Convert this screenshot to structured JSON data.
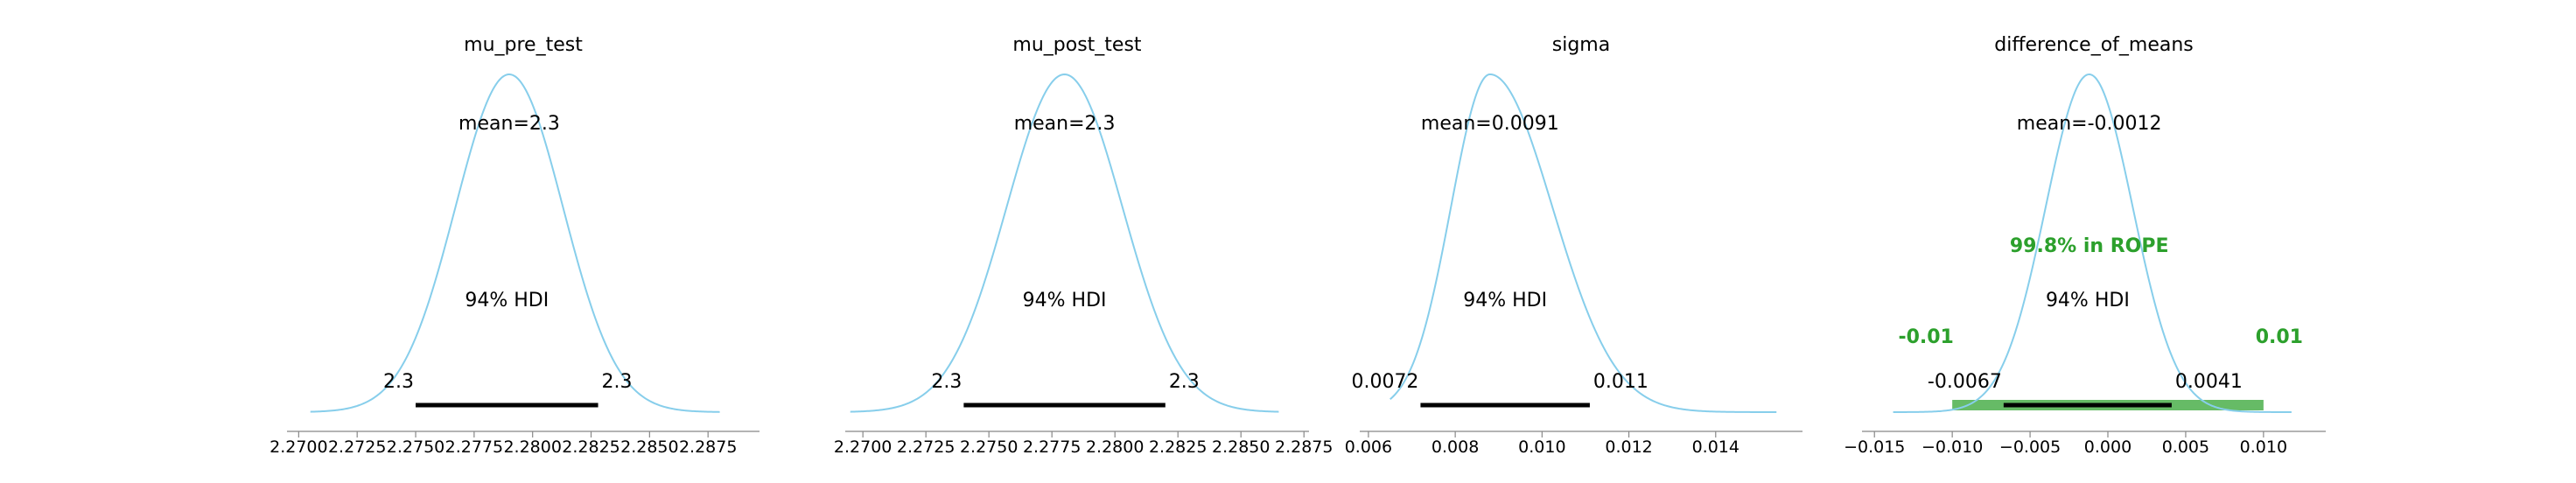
{
  "figure": {
    "colors": {
      "kde": "#87ceeb",
      "hdi": "#000000",
      "rope": "#2ca02c",
      "rope_fill": "#66bb66",
      "axis": "#888888",
      "text": "#000000"
    }
  },
  "chart_data": [
    {
      "type": "area",
      "title": "mu_pre_test",
      "mean_label": "mean=2.3",
      "hdi_label": "94% HDI",
      "hdi_low_label": "2.3",
      "hdi_high_label": "2.3",
      "mean": 2.279,
      "sd": 0.0023,
      "hdi": [
        2.275,
        2.2828
      ],
      "kde_range": [
        2.2705,
        2.288
      ],
      "xlim": [
        2.2695,
        2.2897
      ],
      "xticks": [
        2.27,
        2.2725,
        2.275,
        2.2775,
        2.28,
        2.2825,
        2.285,
        2.2875
      ],
      "xtick_labels": [
        "2.2700",
        "2.2725",
        "2.2750",
        "2.2775",
        "2.2800",
        "2.2825",
        "2.2850",
        "2.2875"
      ]
    },
    {
      "type": "area",
      "title": "mu_post_test",
      "mean_label": "mean=2.3",
      "hdi_label": "94% HDI",
      "hdi_low_label": "2.3",
      "hdi_high_label": "2.3",
      "mean": 2.278,
      "sd": 0.0023,
      "hdi": [
        2.274,
        2.282
      ],
      "kde_range": [
        2.2695,
        2.2865
      ],
      "xlim": [
        2.2693,
        2.2877
      ],
      "xticks": [
        2.27,
        2.2725,
        2.275,
        2.2775,
        2.28,
        2.2825,
        2.285,
        2.2875
      ],
      "xtick_labels": [
        "2.2700",
        "2.2725",
        "2.2750",
        "2.2775",
        "2.2800",
        "2.2825",
        "2.2850",
        "2.2875"
      ]
    },
    {
      "type": "area",
      "title": "sigma",
      "mean_label": "mean=0.0091",
      "hdi_label": "94% HDI",
      "hdi_low_label": "0.0072",
      "hdi_high_label": "0.011",
      "mean": 0.0088,
      "sd": 0.0009,
      "skew": 1.6,
      "hdi": [
        0.0072,
        0.0111
      ],
      "kde_range": [
        0.0065,
        0.0154
      ],
      "xlim": [
        0.0058,
        0.016
      ],
      "xticks": [
        0.006,
        0.008,
        0.01,
        0.012,
        0.014
      ],
      "xtick_labels": [
        "0.006",
        "0.008",
        "0.010",
        "0.012",
        "0.014"
      ]
    },
    {
      "type": "area",
      "title": "difference_of_means",
      "mean_label": "mean=-0.0012",
      "hdi_label": "94% HDI",
      "hdi_low_label": "-0.0067",
      "hdi_high_label": "0.0041",
      "rope_label": "99.8% in ROPE",
      "rope_low_label": "-0.01",
      "rope_high_label": "0.01",
      "mean": -0.0012,
      "sd": 0.0028,
      "hdi": [
        -0.0067,
        0.0041
      ],
      "rope": [
        -0.01,
        0.01
      ],
      "kde_range": [
        -0.0138,
        0.0118
      ],
      "xlim": [
        -0.0158,
        0.014
      ],
      "xticks": [
        -0.015,
        -0.01,
        -0.005,
        0.0,
        0.005,
        0.01
      ],
      "xtick_labels": [
        "−0.015",
        "−0.010",
        "−0.005",
        "0.000",
        "0.005",
        "0.010"
      ]
    }
  ]
}
